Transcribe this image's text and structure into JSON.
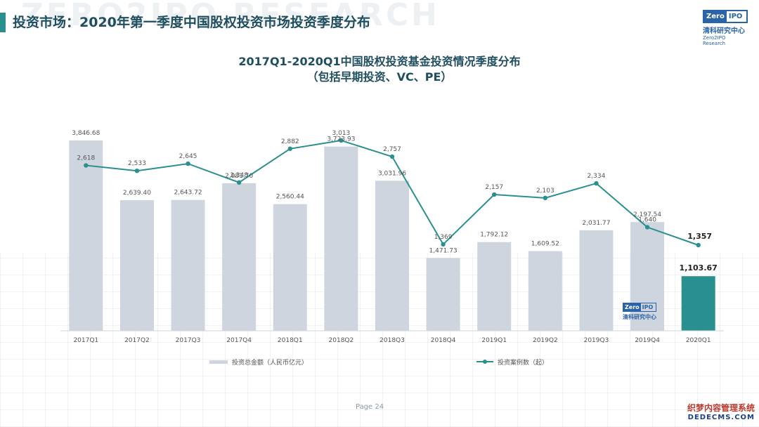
{
  "header": {
    "watermark": "ZERO2IPO RESEARCH",
    "title": "投资市场：2020年第一季度中国股权投资市场投资季度分布",
    "accent_color": "#2a8f8f"
  },
  "logo": {
    "left": "Zero",
    "right": "IPO",
    "cn": "清科研究中心",
    "en": "Zero2IPO Research"
  },
  "chart_title": {
    "line1": "2017Q1-2020Q1中国股权投资基金投资情况季度分布",
    "line2": "（包括早期投资、VC、PE）"
  },
  "footer": {
    "page": "Page 24",
    "site_cn": "织梦内容管理系统",
    "site_en": "DEDECMS.COM"
  },
  "chart_data": {
    "type": "bar",
    "categories": [
      "2017Q1",
      "2017Q2",
      "2017Q3",
      "2017Q4",
      "2018Q1",
      "2018Q2",
      "2018Q3",
      "2018Q4",
      "2019Q1",
      "2019Q2",
      "2019Q3",
      "2019Q4",
      "2020Q1"
    ],
    "series": [
      {
        "name": "投资总金额（人民币亿元）",
        "type": "bar",
        "values": [
          3846.68,
          2639.4,
          2643.72,
          2981.7,
          2560.44,
          3723.93,
          3031.96,
          1471.73,
          1792.12,
          1609.52,
          2031.77,
          2197.54,
          1103.67
        ],
        "labels": [
          "3,846.68",
          "2,639.40",
          "2,643.72",
          "2,981.70",
          "2,560.44",
          "3,723.93",
          "3,031.96",
          "1,471.73",
          "1,792.12",
          "1,609.52",
          "2,031.77",
          "2,197.54",
          "1,103.67"
        ],
        "color": "#cfd5df",
        "highlight_color": "#2a8f8f"
      },
      {
        "name": "投资案例数（起）",
        "type": "line",
        "values": [
          2618,
          2533,
          2645,
          2348,
          2882,
          3013,
          2757,
          1369,
          2157,
          2103,
          2334,
          1640,
          1357
        ],
        "labels": [
          "2,618",
          "2,533",
          "2,645",
          "2,348",
          "2,882",
          "3,013",
          "2,757",
          "1,369",
          "2,157",
          "2,103",
          "2,334",
          "1,640",
          "1,357"
        ],
        "color": "#2a8f8f"
      }
    ],
    "legend_position": "bottom",
    "grid": false
  }
}
